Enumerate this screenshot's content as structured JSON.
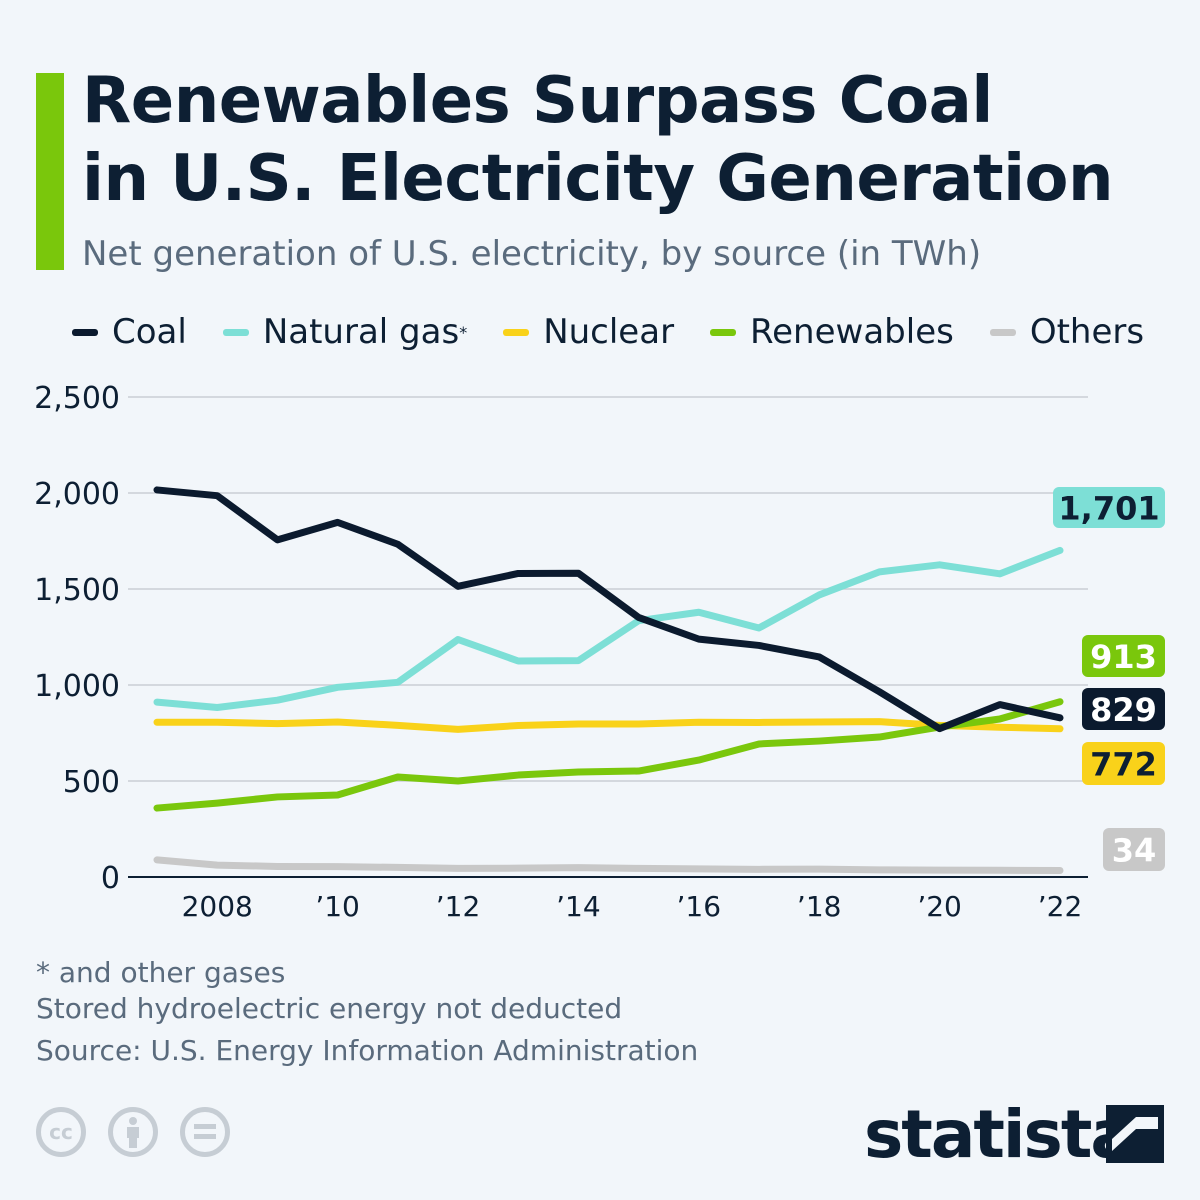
{
  "title_line1": "Renewables Surpass Coal",
  "title_line2": "in U.S. Electricity Generation",
  "subtitle": "Net generation of U.S. electricity, by source (in TWh)",
  "footnotes": [
    "* and other gases",
    "Stored hydroelectric energy not deducted",
    "Source: U.S. Energy Information Administration"
  ],
  "brand": "statista",
  "license_icons": [
    "cc-icon",
    "attribution-icon",
    "no-derivatives-icon"
  ],
  "chart_data": {
    "type": "line",
    "title": "Renewables Surpass Coal in U.S. Electricity Generation",
    "subtitle": "Net generation of U.S. electricity, by source (in TWh)",
    "x": [
      2007,
      2008,
      2009,
      2010,
      2011,
      2012,
      2013,
      2014,
      2015,
      2016,
      2017,
      2018,
      2019,
      2020,
      2021,
      2022
    ],
    "x_tick_values": [
      2008,
      2010,
      2012,
      2014,
      2016,
      2018,
      2020,
      2022
    ],
    "x_tick_labels": [
      "2008",
      "’10",
      "’12",
      "’14",
      "’16",
      "’18",
      "’20",
      "’22"
    ],
    "y_tick_values": [
      0,
      500,
      1000,
      1500,
      2000,
      2500
    ],
    "y_tick_labels": [
      "0",
      "500",
      "1,000",
      "1,500",
      "2,000",
      "2,500"
    ],
    "ylim": [
      0,
      2500
    ],
    "grid": true,
    "legend_position": "top",
    "series": [
      {
        "name": "Coal",
        "legend_sup": "",
        "color": "#0b1a2e",
        "label_text_color": "#ffffff",
        "end_label": "829",
        "values": [
          2016,
          1986,
          1756,
          1847,
          1733,
          1514,
          1581,
          1582,
          1352,
          1239,
          1206,
          1146,
          965,
          773,
          898,
          829
        ]
      },
      {
        "name": "Natural gas",
        "legend_sup": "*",
        "color": "#7ddfd6",
        "label_text_color": "#0d1f33",
        "end_label": "1,701",
        "values": [
          911,
          883,
          921,
          988,
          1014,
          1237,
          1125,
          1127,
          1335,
          1379,
          1297,
          1469,
          1589,
          1626,
          1579,
          1701
        ]
      },
      {
        "name": "Nuclear",
        "legend_sup": "",
        "color": "#f9d21a",
        "label_text_color": "#0d1f33",
        "end_label": "772",
        "values": [
          806,
          806,
          799,
          807,
          790,
          769,
          789,
          797,
          797,
          806,
          805,
          807,
          809,
          790,
          780,
          772
        ]
      },
      {
        "name": "Renewables",
        "legend_sup": "",
        "color": "#7ac70c",
        "label_text_color": "#ffffff",
        "end_label": "913",
        "values": [
          359,
          385,
          417,
          427,
          521,
          500,
          531,
          547,
          552,
          609,
          693,
          708,
          729,
          781,
          823,
          913
        ]
      },
      {
        "name": "Others",
        "legend_sup": "",
        "color": "#c8c8c8",
        "label_text_color": "#ffffff",
        "end_label": "34",
        "values": [
          89,
          62,
          55,
          54,
          50,
          45,
          46,
          49,
          45,
          42,
          40,
          41,
          37,
          36,
          35,
          34
        ]
      }
    ]
  }
}
